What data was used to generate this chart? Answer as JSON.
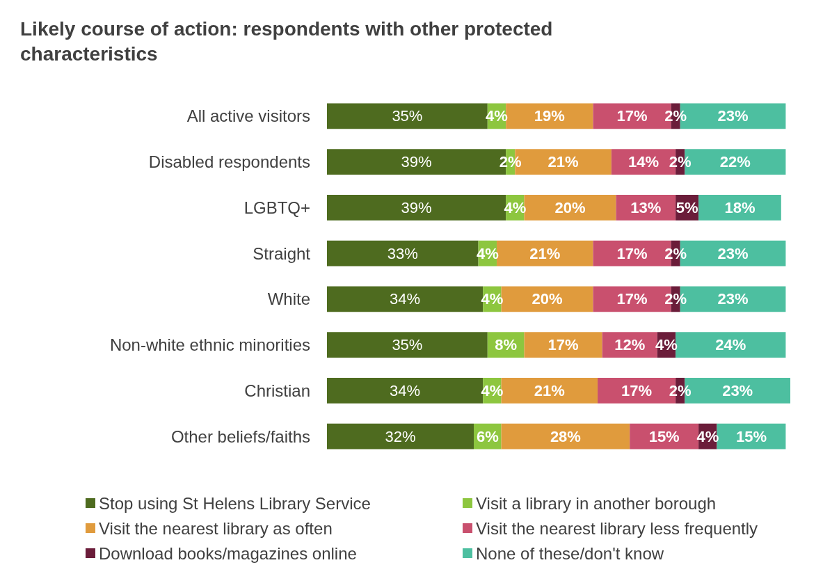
{
  "chart_data": {
    "type": "bar",
    "orientation": "horizontal",
    "stacked": true,
    "title": "Likely course of action: respondents with other protected characteristics",
    "categories": [
      "All active visitors",
      "Disabled respondents",
      "LGBTQ+",
      "Straight",
      "White",
      "Non-white ethnic minorities",
      "Christian",
      "Other beliefs/faiths"
    ],
    "series": [
      {
        "name": "Stop using St Helens Library Service",
        "color": "#4e6b1f",
        "values": [
          35,
          39,
          39,
          33,
          34,
          35,
          34,
          32
        ],
        "value_labels": [
          "35%",
          "39%",
          "39%",
          "33%",
          "34%",
          "35%",
          "34%",
          "32%"
        ]
      },
      {
        "name": "Visit a library in another borough",
        "color": "#8dc63f",
        "values": [
          4,
          2,
          4,
          4,
          4,
          8,
          4,
          6
        ],
        "value_labels": [
          "4%",
          "2%",
          "4%",
          "4%",
          "4%",
          "8%",
          "4%",
          "6%"
        ]
      },
      {
        "name": "Visit the nearest library as often",
        "color": "#e09b3d",
        "values": [
          19,
          21,
          20,
          21,
          20,
          17,
          21,
          28
        ],
        "value_labels": [
          "19%",
          "21%",
          "20%",
          "21%",
          "20%",
          "17%",
          "21%",
          "28%"
        ]
      },
      {
        "name": "Visit the nearest library less frequently",
        "color": "#c9506e",
        "values": [
          17,
          14,
          13,
          17,
          17,
          12,
          17,
          15
        ],
        "value_labels": [
          "17%",
          "14%",
          "13%",
          "17%",
          "17%",
          "12%",
          "17%",
          "15%"
        ]
      },
      {
        "name": "Download books/magazines online",
        "color": "#6b1d3a",
        "values": [
          2,
          2,
          5,
          2,
          2,
          4,
          2,
          4
        ],
        "value_labels": [
          "2%",
          "2%",
          "5%",
          "2%",
          "2%",
          "4%",
          "2%",
          "4%"
        ]
      },
      {
        "name": "None of these/don't know",
        "color": "#4dbfa0",
        "values": [
          23,
          22,
          18,
          23,
          23,
          24,
          23,
          15
        ],
        "value_labels": [
          "23%",
          "22%",
          "18%",
          "23%",
          "23%",
          "24%",
          "23%",
          "15%"
        ]
      }
    ],
    "tick_labels": "y",
    "legend": "bottom"
  }
}
